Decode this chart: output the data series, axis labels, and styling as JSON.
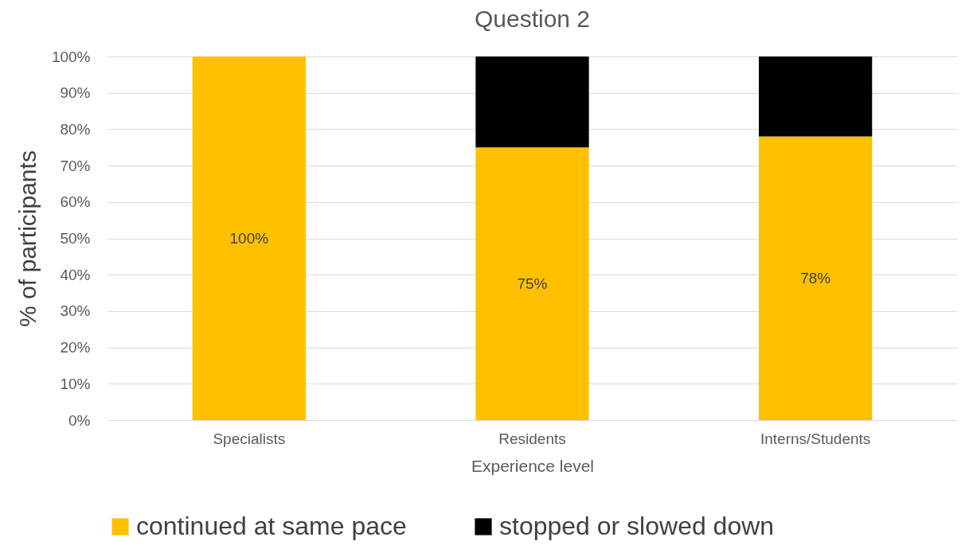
{
  "chart_data": {
    "type": "bar",
    "title": "Question 2",
    "xlabel": "Experience level",
    "ylabel": "% of participants",
    "categories": [
      "Specialists",
      "Residents",
      "Interns/Students"
    ],
    "stacked": true,
    "series": [
      {
        "name": "continued at same pace",
        "color": "#ffc000",
        "values": [
          100,
          75,
          78
        ],
        "value_labels": [
          "100%",
          "75%",
          "78%"
        ]
      },
      {
        "name": "stopped or slowed down",
        "color": "#000000",
        "values": [
          0,
          25,
          22
        ]
      }
    ],
    "ylim": [
      0,
      100
    ],
    "yticks": [
      {
        "value": 0,
        "label": "0%"
      },
      {
        "value": 10,
        "label": "10%"
      },
      {
        "value": 20,
        "label": "20%"
      },
      {
        "value": 30,
        "label": "30%"
      },
      {
        "value": 40,
        "label": "40%"
      },
      {
        "value": 50,
        "label": "50%"
      },
      {
        "value": 60,
        "label": "60%"
      },
      {
        "value": 70,
        "label": "70%"
      },
      {
        "value": 80,
        "label": "80%"
      },
      {
        "value": 90,
        "label": "90%"
      },
      {
        "value": 100,
        "label": "100%"
      }
    ],
    "grid": "y",
    "legend": "bottom"
  }
}
